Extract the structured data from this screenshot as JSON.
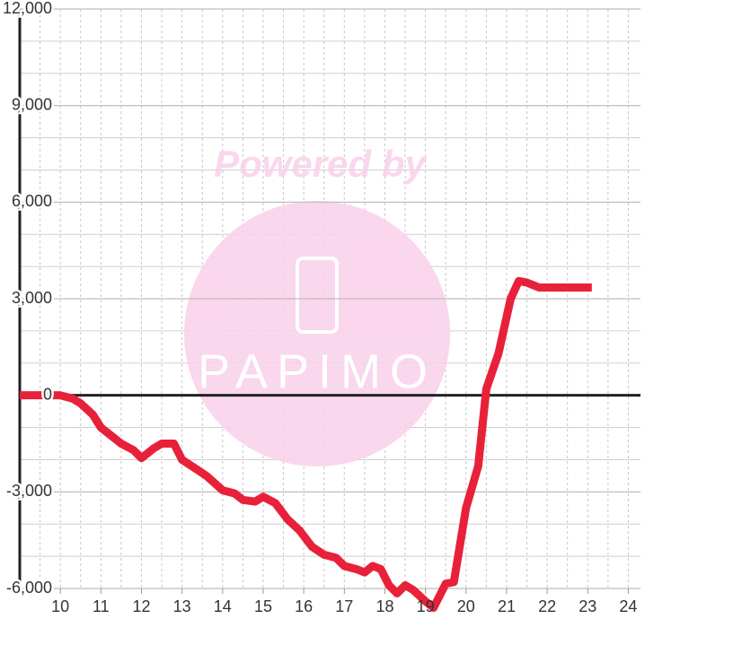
{
  "chart_data": {
    "type": "line",
    "watermark": {
      "line1": "Powered by",
      "line2": "PAPIMO"
    },
    "x": [
      9.0,
      9.5,
      10.0,
      10.3,
      10.5,
      10.8,
      11.0,
      11.3,
      11.5,
      11.8,
      12.0,
      12.3,
      12.5,
      12.8,
      13.0,
      13.3,
      13.6,
      14.0,
      14.3,
      14.5,
      14.8,
      15.0,
      15.3,
      15.6,
      15.9,
      16.2,
      16.5,
      16.8,
      17.0,
      17.3,
      17.5,
      17.7,
      17.9,
      18.1,
      18.3,
      18.5,
      18.7,
      19.0,
      19.2,
      19.5,
      19.7,
      20.0,
      20.3,
      20.5,
      20.8,
      21.1,
      21.3,
      21.5,
      21.8,
      22.2,
      23.1
    ],
    "series": [
      {
        "color": "#e8213a",
        "values": [
          0,
          0,
          0,
          -100,
          -250,
          -600,
          -1000,
          -1300,
          -1500,
          -1700,
          -1950,
          -1650,
          -1500,
          -1500,
          -2000,
          -2250,
          -2500,
          -2950,
          -3050,
          -3250,
          -3300,
          -3150,
          -3350,
          -3850,
          -4200,
          -4700,
          -4950,
          -5050,
          -5300,
          -5400,
          -5500,
          -5300,
          -5400,
          -5900,
          -6150,
          -5900,
          -6050,
          -6400,
          -6600,
          -5850,
          -5800,
          -3500,
          -2200,
          200,
          1300,
          3000,
          3550,
          3500,
          3350,
          3350,
          3350
        ]
      }
    ],
    "xlim": [
      9,
      24.3
    ],
    "ylim": [
      -6000,
      12000
    ],
    "xticks": [
      10,
      11,
      12,
      13,
      14,
      15,
      16,
      17,
      18,
      19,
      20,
      21,
      22,
      23,
      24
    ],
    "yticks": [
      {
        "value": -6000,
        "label": "-6,000"
      },
      {
        "value": -3000,
        "label": "-3,000"
      },
      0,
      {
        "value": 3000,
        "label": "3,000"
      },
      {
        "value": 6000,
        "label": "6,000"
      },
      {
        "value": 9000,
        "label": "9,000"
      },
      {
        "value": 12000,
        "label": "12,000"
      }
    ],
    "x_grid": [
      9.5,
      10,
      10.5,
      11,
      11.5,
      12,
      12.5,
      13,
      13.5,
      14,
      14.5,
      15,
      15.5,
      16,
      16.5,
      17,
      17.5,
      18,
      18.5,
      19,
      19.5,
      20,
      20.5,
      21,
      21.5,
      22,
      22.5,
      23,
      23.5,
      24
    ],
    "y_grid": [
      -5000,
      -4000,
      -3000,
      -2000,
      -1000,
      1000,
      2000,
      3000,
      4000,
      5000,
      6000,
      7000,
      8000,
      9000,
      10000,
      11000,
      12000
    ]
  }
}
